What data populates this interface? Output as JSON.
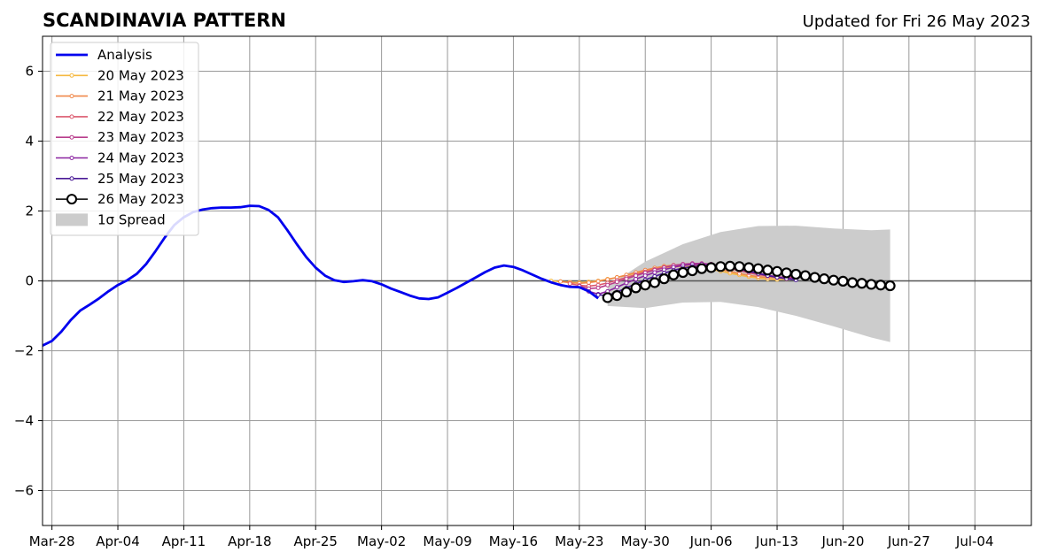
{
  "chart_data": {
    "type": "line",
    "title": "SCANDINAVIA PATTERN",
    "subtitle": "Updated for Fri 26 May 2023",
    "xlabel": "",
    "ylabel": "",
    "x_type": "date",
    "xlim": [
      "2023-03-27",
      "2023-07-10"
    ],
    "ylim": [
      -7,
      7
    ],
    "yticks": [
      -6,
      -4,
      -2,
      0,
      2,
      4,
      6
    ],
    "ytick_labels": [
      "−6",
      "−4",
      "−2",
      "0",
      "2",
      "4",
      "6"
    ],
    "xticks": [
      "2023-03-28",
      "2023-04-04",
      "2023-04-11",
      "2023-04-18",
      "2023-04-25",
      "2023-05-02",
      "2023-05-09",
      "2023-05-16",
      "2023-05-23",
      "2023-05-30",
      "2023-06-06",
      "2023-06-13",
      "2023-06-20",
      "2023-06-27",
      "2023-07-04"
    ],
    "xtick_labels": [
      "Mar-28",
      "Apr-04",
      "Apr-11",
      "Apr-18",
      "Apr-25",
      "May-02",
      "May-09",
      "May-16",
      "May-23",
      "May-30",
      "Jun-06",
      "Jun-13",
      "Jun-20",
      "Jun-27",
      "Jul-04"
    ],
    "grid": true,
    "legend_position": "top-left",
    "colors": {
      "analysis": "#0000ee",
      "spread": "#cccccc",
      "zero_line": "#555555"
    },
    "analysis": {
      "name": "Analysis",
      "x": [
        "2023-03-27",
        "2023-03-28",
        "2023-03-29",
        "2023-03-30",
        "2023-03-31",
        "2023-04-01",
        "2023-04-02",
        "2023-04-03",
        "2023-04-04",
        "2023-04-05",
        "2023-04-06",
        "2023-04-07",
        "2023-04-08",
        "2023-04-09",
        "2023-04-10",
        "2023-04-11",
        "2023-04-12",
        "2023-04-13",
        "2023-04-14",
        "2023-04-15",
        "2023-04-16",
        "2023-04-17",
        "2023-04-18",
        "2023-04-19",
        "2023-04-20",
        "2023-04-21",
        "2023-04-22",
        "2023-04-23",
        "2023-04-24",
        "2023-04-25",
        "2023-04-26",
        "2023-04-27",
        "2023-04-28",
        "2023-04-29",
        "2023-04-30",
        "2023-05-01",
        "2023-05-02",
        "2023-05-03",
        "2023-05-04",
        "2023-05-05",
        "2023-05-06",
        "2023-05-07",
        "2023-05-08",
        "2023-05-09",
        "2023-05-10",
        "2023-05-11",
        "2023-05-12",
        "2023-05-13",
        "2023-05-14",
        "2023-05-15",
        "2023-05-16",
        "2023-05-17",
        "2023-05-18",
        "2023-05-19",
        "2023-05-20",
        "2023-05-21",
        "2023-05-22",
        "2023-05-23",
        "2023-05-24",
        "2023-05-25"
      ],
      "values": [
        -1.85,
        -1.72,
        -1.45,
        -1.12,
        -0.85,
        -0.68,
        -0.5,
        -0.3,
        -0.12,
        0.02,
        0.2,
        0.48,
        0.85,
        1.25,
        1.6,
        1.82,
        1.97,
        2.04,
        2.08,
        2.1,
        2.1,
        2.11,
        2.15,
        2.14,
        2.03,
        1.82,
        1.45,
        1.05,
        0.68,
        0.38,
        0.15,
        0.02,
        -0.03,
        -0.01,
        0.02,
        -0.01,
        -0.1,
        -0.22,
        -0.32,
        -0.42,
        -0.5,
        -0.52,
        -0.47,
        -0.34,
        -0.2,
        -0.05,
        0.1,
        0.25,
        0.38,
        0.44,
        0.4,
        0.3,
        0.18,
        0.06,
        -0.04,
        -0.12,
        -0.17,
        -0.18,
        -0.3,
        -0.5
      ]
    },
    "series": [
      {
        "name": "20 May 2023",
        "color": "#f5b942",
        "x_start": "2023-05-20",
        "values": [
          0.0,
          -0.02,
          -0.04,
          -0.05,
          -0.03,
          0.0,
          0.05,
          0.1,
          0.16,
          0.22,
          0.28,
          0.33,
          0.37,
          0.4,
          0.41,
          0.4,
          0.37,
          0.33,
          0.28,
          0.22,
          0.17,
          0.12,
          0.08,
          0.05,
          0.04,
          0.05,
          0.07
        ]
      },
      {
        "name": "21 May 2023",
        "color": "#f0884a",
        "x_start": "2023-05-21",
        "values": [
          -0.02,
          -0.05,
          -0.07,
          -0.05,
          -0.01,
          0.04,
          0.1,
          0.17,
          0.24,
          0.31,
          0.37,
          0.42,
          0.45,
          0.46,
          0.45,
          0.42,
          0.38,
          0.33,
          0.27,
          0.21,
          0.16,
          0.12,
          0.1,
          0.09,
          0.1,
          0.12
        ]
      },
      {
        "name": "22 May 2023",
        "color": "#dc5a6e",
        "x_start": "2023-05-22",
        "values": [
          -0.08,
          -0.13,
          -0.15,
          -0.12,
          -0.06,
          0.02,
          0.1,
          0.18,
          0.26,
          0.33,
          0.39,
          0.44,
          0.47,
          0.48,
          0.47,
          0.44,
          0.4,
          0.35,
          0.29,
          0.23,
          0.18,
          0.14,
          0.11,
          0.1,
          0.11
        ]
      },
      {
        "name": "23 May 2023",
        "color": "#b83d8c",
        "x_start": "2023-05-23",
        "values": [
          -0.15,
          -0.22,
          -0.2,
          -0.12,
          -0.03,
          0.06,
          0.15,
          0.23,
          0.31,
          0.38,
          0.44,
          0.48,
          0.5,
          0.5,
          0.48,
          0.44,
          0.39,
          0.33,
          0.27,
          0.21,
          0.16,
          0.12,
          0.09,
          0.08
        ]
      },
      {
        "name": "24 May 2023",
        "color": "#8a23a0",
        "x_start": "2023-05-24",
        "values": [
          -0.3,
          -0.38,
          -0.3,
          -0.18,
          -0.06,
          0.05,
          0.15,
          0.24,
          0.32,
          0.39,
          0.44,
          0.47,
          0.48,
          0.47,
          0.44,
          0.4,
          0.34,
          0.28,
          0.22,
          0.16,
          0.11,
          0.07,
          0.05
        ]
      },
      {
        "name": "25 May 2023",
        "color": "#4a1a96",
        "x_start": "2023-05-25",
        "values": [
          -0.4,
          -0.42,
          -0.32,
          -0.2,
          -0.08,
          0.03,
          0.13,
          0.22,
          0.3,
          0.37,
          0.41,
          0.43,
          0.43,
          0.41,
          0.38,
          0.33,
          0.27,
          0.21,
          0.15,
          0.1,
          0.06,
          0.03
        ]
      },
      {
        "name": "26 May 2023",
        "color": "#000000",
        "x_start": "2023-05-26",
        "values": [
          -0.48,
          -0.42,
          -0.32,
          -0.2,
          -0.12,
          -0.05,
          0.06,
          0.17,
          0.24,
          0.29,
          0.35,
          0.38,
          0.41,
          0.42,
          0.41,
          0.38,
          0.35,
          0.31,
          0.27,
          0.23,
          0.19,
          0.15,
          0.1,
          0.06,
          0.02,
          -0.01,
          -0.05,
          -0.07,
          -0.1,
          -0.12,
          -0.14
        ]
      }
    ],
    "spread": {
      "name": "1σ Spread",
      "x": [
        "2023-05-26",
        "2023-05-30",
        "2023-06-03",
        "2023-06-07",
        "2023-06-11",
        "2023-06-15",
        "2023-06-19",
        "2023-06-23",
        "2023-06-25"
      ],
      "upper": [
        -0.15,
        0.55,
        1.05,
        1.4,
        1.57,
        1.58,
        1.5,
        1.45,
        1.47
      ],
      "lower": [
        -0.72,
        -0.78,
        -0.62,
        -0.6,
        -0.75,
        -1.0,
        -1.3,
        -1.62,
        -1.75
      ]
    },
    "legend": [
      {
        "label": "Analysis",
        "kind": "analysis"
      },
      {
        "label": "20 May 2023",
        "kind": "series",
        "index": 0
      },
      {
        "label": "21 May 2023",
        "kind": "series",
        "index": 1
      },
      {
        "label": "22 May 2023",
        "kind": "series",
        "index": 2
      },
      {
        "label": "23 May 2023",
        "kind": "series",
        "index": 3
      },
      {
        "label": "24 May 2023",
        "kind": "series",
        "index": 4
      },
      {
        "label": "25 May 2023",
        "kind": "series",
        "index": 5
      },
      {
        "label": "26 May 2023",
        "kind": "latest",
        "index": 6
      },
      {
        "label": "1σ Spread",
        "kind": "spread"
      }
    ]
  }
}
